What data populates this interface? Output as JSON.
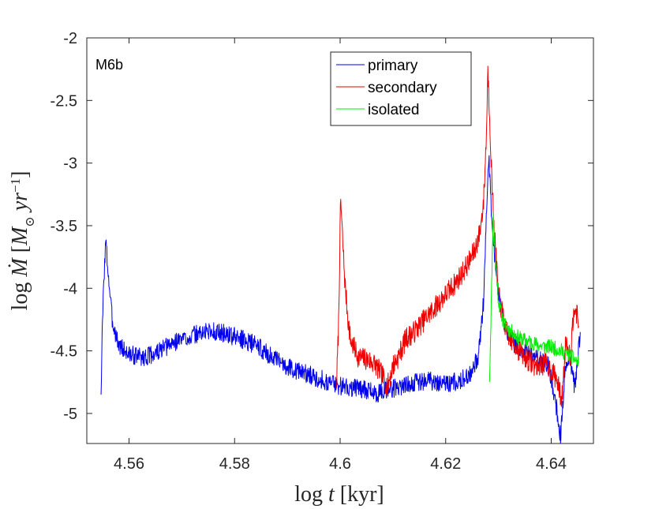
{
  "chart_data": {
    "type": "line",
    "panel_label": "M6b",
    "xlabel": "log t [kyr]",
    "xlabel_parts": {
      "prefix": "log ",
      "var": "t",
      "unit": " [kyr]"
    },
    "ylabel": "log Ṁ [M⊙ yr^-1]",
    "ylabel_parts": {
      "prefix": "log ",
      "var": "Ṁ",
      "unit_open": " [",
      "msun": "M",
      "sun": "⊙",
      "yr": " yr",
      "exp": "−1",
      "unit_close": "]"
    },
    "xlim": [
      4.552,
      4.648
    ],
    "ylim": [
      -5.24,
      -2.0
    ],
    "xticks": [
      4.56,
      4.58,
      4.6,
      4.62,
      4.64
    ],
    "xtick_labels": [
      "4.56",
      "4.58",
      "4.6",
      "4.62",
      "4.64"
    ],
    "yticks": [
      -2.0,
      -2.5,
      -3.0,
      -3.5,
      -4.0,
      -4.5,
      -5.0
    ],
    "ytick_labels": [
      "-2",
      "-2.5",
      "-3",
      "-3.5",
      "-4",
      "-4.5",
      "-5"
    ],
    "legend_position": "top-right",
    "series": [
      {
        "name": "primary",
        "color": "#0000ee",
        "keypoints": [
          [
            4.5547,
            -4.85
          ],
          [
            4.5549,
            -4.4
          ],
          [
            4.5552,
            -3.95
          ],
          [
            4.5556,
            -3.62
          ],
          [
            4.556,
            -3.85
          ],
          [
            4.5568,
            -4.25
          ],
          [
            4.558,
            -4.45
          ],
          [
            4.56,
            -4.53
          ],
          [
            4.563,
            -4.55
          ],
          [
            4.566,
            -4.5
          ],
          [
            4.569,
            -4.42
          ],
          [
            4.572,
            -4.38
          ],
          [
            4.575,
            -4.34
          ],
          [
            4.578,
            -4.36
          ],
          [
            4.581,
            -4.4
          ],
          [
            4.584,
            -4.45
          ],
          [
            4.588,
            -4.58
          ],
          [
            4.592,
            -4.66
          ],
          [
            4.596,
            -4.72
          ],
          [
            4.6,
            -4.78
          ],
          [
            4.604,
            -4.8
          ],
          [
            4.607,
            -4.84
          ],
          [
            4.61,
            -4.8
          ],
          [
            4.613,
            -4.76
          ],
          [
            4.617,
            -4.74
          ],
          [
            4.621,
            -4.76
          ],
          [
            4.6245,
            -4.7
          ],
          [
            4.6262,
            -4.55
          ],
          [
            4.6272,
            -4.1
          ],
          [
            4.6278,
            -3.3
          ],
          [
            4.6282,
            -2.95
          ],
          [
            4.6286,
            -3.35
          ],
          [
            4.6292,
            -3.7
          ],
          [
            4.63,
            -4.05
          ],
          [
            4.6315,
            -4.35
          ],
          [
            4.633,
            -4.45
          ],
          [
            4.635,
            -4.5
          ],
          [
            4.637,
            -4.55
          ],
          [
            4.6395,
            -4.62
          ],
          [
            4.641,
            -4.95
          ],
          [
            4.6418,
            -5.2
          ],
          [
            4.6426,
            -4.65
          ],
          [
            4.6435,
            -4.55
          ],
          [
            4.6445,
            -4.8
          ],
          [
            4.6455,
            -4.35
          ]
        ],
        "noise": 0.075,
        "seed": 3
      },
      {
        "name": "secondary",
        "color": "#ee0000",
        "keypoints": [
          [
            4.5993,
            -4.8
          ],
          [
            4.5997,
            -4.3
          ],
          [
            4.6001,
            -3.28
          ],
          [
            4.6004,
            -3.55
          ],
          [
            4.6009,
            -3.95
          ],
          [
            4.6015,
            -4.25
          ],
          [
            4.602,
            -4.42
          ],
          [
            4.6035,
            -4.55
          ],
          [
            4.605,
            -4.57
          ],
          [
            4.6065,
            -4.6
          ],
          [
            4.608,
            -4.7
          ],
          [
            4.609,
            -4.78
          ],
          [
            4.61,
            -4.62
          ],
          [
            4.611,
            -4.55
          ],
          [
            4.6125,
            -4.4
          ],
          [
            4.614,
            -4.35
          ],
          [
            4.616,
            -4.25
          ],
          [
            4.618,
            -4.15
          ],
          [
            4.62,
            -4.05
          ],
          [
            4.622,
            -3.95
          ],
          [
            4.624,
            -3.82
          ],
          [
            4.6255,
            -3.7
          ],
          [
            4.6265,
            -3.55
          ],
          [
            4.6272,
            -3.3
          ],
          [
            4.6277,
            -2.8
          ],
          [
            4.628,
            -2.25
          ],
          [
            4.6284,
            -2.7
          ],
          [
            4.6288,
            -3.2
          ],
          [
            4.6293,
            -3.6
          ],
          [
            4.63,
            -4.05
          ],
          [
            4.6315,
            -4.35
          ],
          [
            4.633,
            -4.45
          ],
          [
            4.635,
            -4.55
          ],
          [
            4.637,
            -4.62
          ],
          [
            4.639,
            -4.6
          ],
          [
            4.641,
            -4.72
          ],
          [
            4.642,
            -4.9
          ],
          [
            4.6428,
            -4.4
          ],
          [
            4.6436,
            -4.55
          ],
          [
            4.6444,
            -4.1
          ],
          [
            4.6452,
            -4.3
          ]
        ],
        "noise": 0.09,
        "seed": 7
      },
      {
        "name": "isolated",
        "color": "#00ee00",
        "keypoints": [
          [
            4.6283,
            -4.75
          ],
          [
            4.6286,
            -4.2
          ],
          [
            4.629,
            -3.38
          ],
          [
            4.6294,
            -3.75
          ],
          [
            4.63,
            -4.1
          ],
          [
            4.631,
            -4.28
          ],
          [
            4.632,
            -4.33
          ],
          [
            4.634,
            -4.4
          ],
          [
            4.636,
            -4.43
          ],
          [
            4.638,
            -4.46
          ],
          [
            4.64,
            -4.47
          ],
          [
            4.642,
            -4.5
          ],
          [
            4.644,
            -4.55
          ],
          [
            4.6452,
            -4.6
          ]
        ],
        "noise": 0.06,
        "seed": 11
      }
    ]
  }
}
